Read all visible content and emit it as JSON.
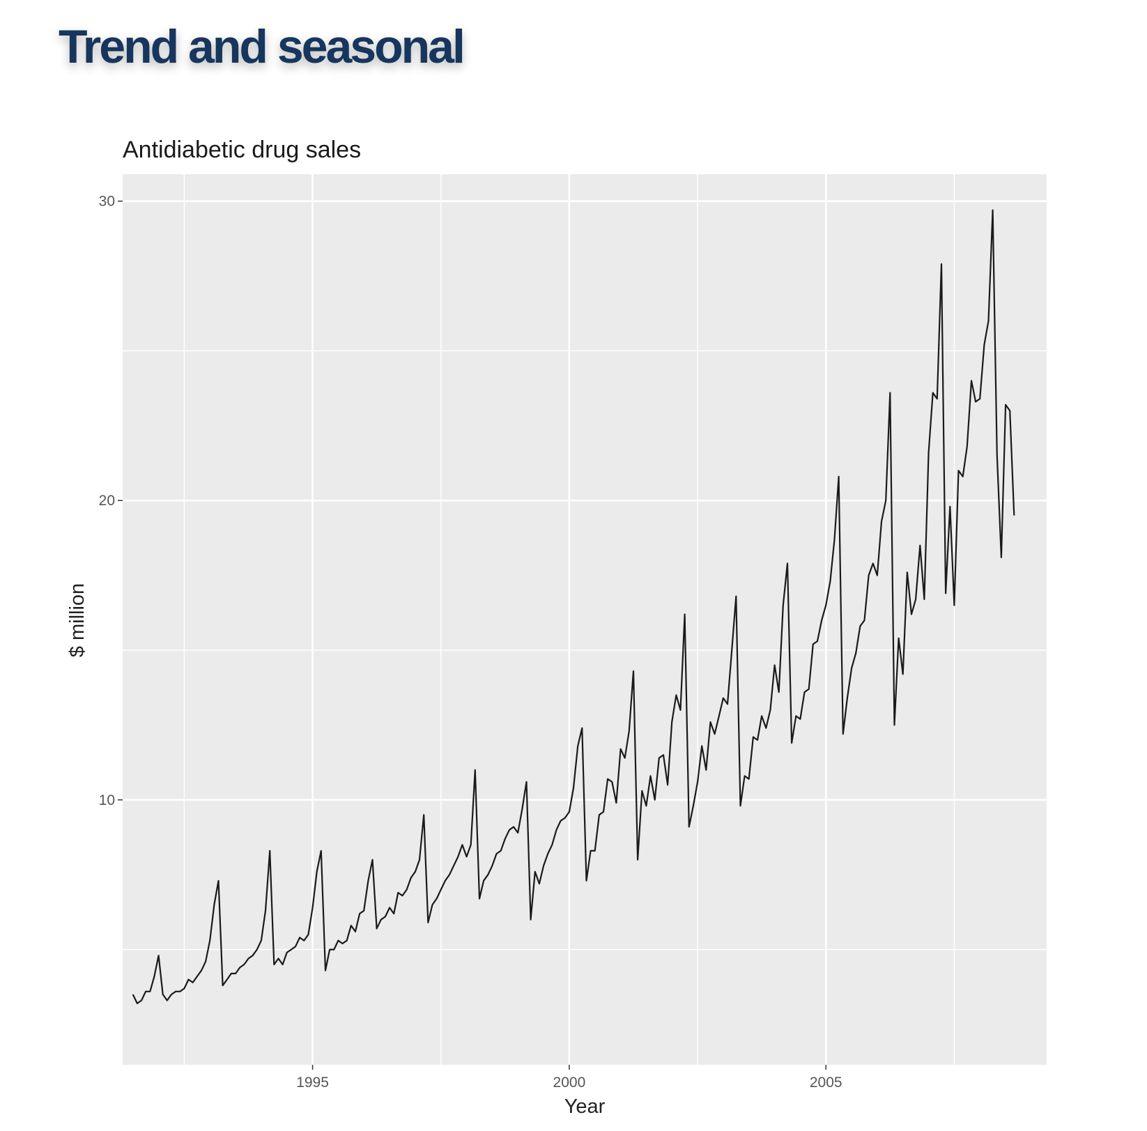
{
  "slide": {
    "title": "Trend and seasonal"
  },
  "chart_data": {
    "type": "line",
    "title": "Antidiabetic drug sales",
    "xlabel": "Year",
    "ylabel": "$ million",
    "xlim": [
      1991.3,
      2009.3
    ],
    "ylim": [
      1.15,
      30.9
    ],
    "x_ticks": [
      1995,
      2000,
      2005
    ],
    "y_ticks": [
      10,
      20,
      30
    ],
    "x_start": 1991.5,
    "x_step": 0.0833333,
    "grid": true,
    "legend": "none",
    "colors": {
      "line": "#1a1a1a",
      "panel": "#ebebeb",
      "grid": "#ffffff"
    },
    "series": [
      {
        "values": [
          3.5,
          3.2,
          3.3,
          3.6,
          3.6,
          4.1,
          4.8,
          3.5,
          3.3,
          3.5,
          3.6,
          3.6,
          3.7,
          4.0,
          3.9,
          4.1,
          4.3,
          4.6,
          5.3,
          6.5,
          7.3,
          3.8,
          4.0,
          4.2,
          4.2,
          4.4,
          4.5,
          4.7,
          4.8,
          5.0,
          5.3,
          6.3,
          8.3,
          4.5,
          4.7,
          4.5,
          4.9,
          5.0,
          5.1,
          5.4,
          5.3,
          5.5,
          6.4,
          7.6,
          8.3,
          4.3,
          5.0,
          5.0,
          5.3,
          5.2,
          5.3,
          5.8,
          5.6,
          6.2,
          6.3,
          7.3,
          8.0,
          5.7,
          6.0,
          6.1,
          6.4,
          6.2,
          6.9,
          6.8,
          7.0,
          7.4,
          7.6,
          8.0,
          9.5,
          5.9,
          6.5,
          6.7,
          7.0,
          7.3,
          7.5,
          7.8,
          8.1,
          8.5,
          8.1,
          8.5,
          11.0,
          6.7,
          7.3,
          7.5,
          7.8,
          8.2,
          8.3,
          8.7,
          9.0,
          9.1,
          8.9,
          9.7,
          10.6,
          6.0,
          7.6,
          7.2,
          7.8,
          8.2,
          8.5,
          9.0,
          9.3,
          9.4,
          9.6,
          10.4,
          11.8,
          12.4,
          7.3,
          8.3,
          8.3,
          9.5,
          9.6,
          10.7,
          10.6,
          9.9,
          11.7,
          11.4,
          12.3,
          14.3,
          8.0,
          10.3,
          9.8,
          10.8,
          10.0,
          11.4,
          11.5,
          10.5,
          12.6,
          13.5,
          13.0,
          16.2,
          9.1,
          9.8,
          10.6,
          11.8,
          11.0,
          12.6,
          12.2,
          12.8,
          13.4,
          13.2,
          15.0,
          16.8,
          9.8,
          10.8,
          10.7,
          12.1,
          12.0,
          12.8,
          12.4,
          13.0,
          14.5,
          13.6,
          16.5,
          17.9,
          11.9,
          12.8,
          12.7,
          13.6,
          13.7,
          15.2,
          15.3,
          16.0,
          16.5,
          17.3,
          18.7,
          20.8,
          12.2,
          13.4,
          14.4,
          14.9,
          15.8,
          16.0,
          17.5,
          17.9,
          17.5,
          19.3,
          20.0,
          23.6,
          12.5,
          15.4,
          14.2,
          17.6,
          16.2,
          16.7,
          18.5,
          16.7,
          21.6,
          23.6,
          23.4,
          27.9,
          16.9,
          19.8,
          16.5,
          21.0,
          20.8,
          21.8,
          24.0,
          23.3,
          23.4,
          25.2,
          26.0,
          29.7,
          21.5,
          18.1,
          23.2,
          23.0,
          19.5
        ]
      }
    ]
  }
}
